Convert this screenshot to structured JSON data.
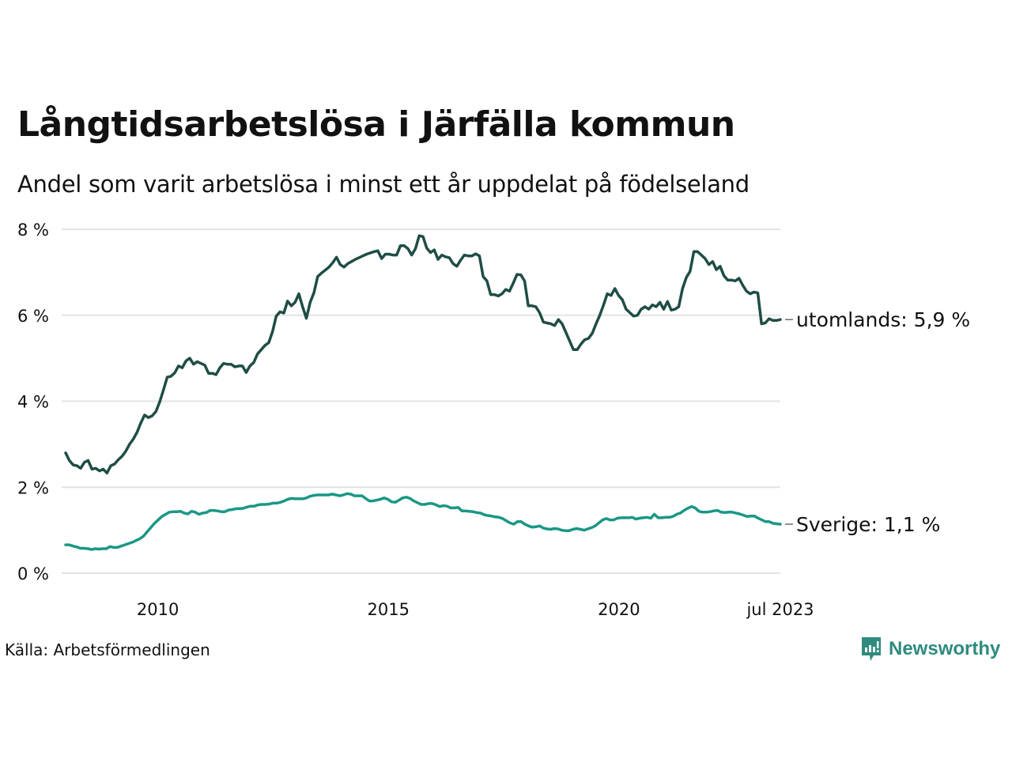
{
  "header": {
    "title": "Långtidsarbetslösa i Järfälla kommun",
    "subtitle": "Andel som varit arbetslösa i minst ett år uppdelat på födelseland"
  },
  "footer": {
    "source": "Källa: Arbetsförmedlingen",
    "logo_text": "Newsworthy",
    "logo_icon": "chart-speech-bubble-icon"
  },
  "colors": {
    "utomlands": "#1f4d45",
    "sverige": "#1a9785",
    "grid": "#e3e3e8",
    "logo": "#2e8b7e"
  },
  "chart_data": {
    "type": "line",
    "title": "Långtidsarbetslösa i Järfälla kommun",
    "subtitle": "Andel som varit arbetslösa i minst ett år uppdelat på födelseland",
    "xlabel": "",
    "ylabel": "",
    "x_start": "2008-01",
    "x_end": "2023-07",
    "x_frequency": "monthly",
    "xticks": [
      {
        "label": "2010",
        "at": 2010.0
      },
      {
        "label": "2015",
        "at": 2015.0
      },
      {
        "label": "2020",
        "at": 2020.0
      },
      {
        "label": "jul 2023",
        "at": 2023.5
      }
    ],
    "yticks": [
      {
        "label": "0 %",
        "value": 0
      },
      {
        "label": "2 %",
        "value": 2
      },
      {
        "label": "4 %",
        "value": 4
      },
      {
        "label": "6 %",
        "value": 6
      },
      {
        "label": "8 %",
        "value": 8
      }
    ],
    "ylim": [
      0,
      8
    ],
    "grid": "horizontal",
    "legend": "direct-labels-right",
    "series": [
      {
        "name": "utomlands",
        "end_label": "utomlands: 5,9 %",
        "values": [
          2.8,
          2.62,
          2.52,
          2.5,
          2.44,
          2.58,
          2.62,
          2.42,
          2.44,
          2.38,
          2.42,
          2.33,
          2.5,
          2.54,
          2.64,
          2.72,
          2.84,
          3.0,
          3.12,
          3.28,
          3.5,
          3.68,
          3.62,
          3.66,
          3.76,
          3.98,
          4.26,
          4.56,
          4.58,
          4.66,
          4.82,
          4.78,
          4.94,
          5.0,
          4.86,
          4.92,
          4.88,
          4.84,
          4.65,
          4.65,
          4.62,
          4.78,
          4.88,
          4.86,
          4.86,
          4.8,
          4.82,
          4.82,
          4.67,
          4.82,
          4.9,
          5.1,
          5.2,
          5.3,
          5.36,
          5.62,
          5.98,
          6.08,
          6.05,
          6.33,
          6.22,
          6.3,
          6.5,
          6.2,
          5.93,
          6.3,
          6.52,
          6.9,
          6.98,
          7.05,
          7.12,
          7.22,
          7.35,
          7.18,
          7.12,
          7.2,
          7.25,
          7.3,
          7.34,
          7.38,
          7.42,
          7.45,
          7.48,
          7.5,
          7.32,
          7.42,
          7.42,
          7.4,
          7.4,
          7.62,
          7.62,
          7.55,
          7.4,
          7.55,
          7.85,
          7.83,
          7.56,
          7.46,
          7.52,
          7.3,
          7.4,
          7.36,
          7.34,
          7.2,
          7.14,
          7.28,
          7.4,
          7.38,
          7.38,
          7.43,
          7.38,
          6.9,
          6.8,
          6.48,
          6.48,
          6.45,
          6.5,
          6.6,
          6.56,
          6.75,
          6.95,
          6.94,
          6.8,
          6.22,
          6.22,
          6.2,
          6.06,
          5.84,
          5.82,
          5.8,
          5.76,
          5.9,
          5.8,
          5.6,
          5.4,
          5.2,
          5.2,
          5.33,
          5.43,
          5.46,
          5.58,
          5.8,
          6.0,
          6.24,
          6.5,
          6.46,
          6.62,
          6.46,
          6.36,
          6.14,
          6.06,
          5.98,
          6.0,
          6.14,
          6.2,
          6.14,
          6.24,
          6.2,
          6.3,
          6.14,
          6.32,
          6.12,
          6.14,
          6.2,
          6.62,
          6.88,
          7.02,
          7.48,
          7.48,
          7.4,
          7.32,
          7.18,
          7.25,
          7.06,
          7.14,
          6.92,
          6.82,
          6.82,
          6.8,
          6.86,
          6.7,
          6.56,
          6.5,
          6.54,
          6.52,
          5.8,
          5.82,
          5.92,
          5.88,
          5.88,
          5.9
        ]
      },
      {
        "name": "Sverige",
        "end_label": "Sverige: 1,1 %",
        "values": [
          0.66,
          0.66,
          0.63,
          0.61,
          0.58,
          0.58,
          0.57,
          0.55,
          0.57,
          0.56,
          0.57,
          0.57,
          0.62,
          0.6,
          0.6,
          0.63,
          0.66,
          0.69,
          0.72,
          0.76,
          0.8,
          0.86,
          0.96,
          1.06,
          1.16,
          1.24,
          1.32,
          1.37,
          1.42,
          1.43,
          1.43,
          1.44,
          1.4,
          1.38,
          1.44,
          1.42,
          1.37,
          1.4,
          1.41,
          1.46,
          1.46,
          1.45,
          1.43,
          1.43,
          1.47,
          1.48,
          1.5,
          1.5,
          1.51,
          1.54,
          1.56,
          1.56,
          1.59,
          1.6,
          1.6,
          1.61,
          1.63,
          1.63,
          1.65,
          1.68,
          1.72,
          1.74,
          1.73,
          1.73,
          1.73,
          1.75,
          1.79,
          1.81,
          1.82,
          1.82,
          1.82,
          1.82,
          1.84,
          1.82,
          1.8,
          1.82,
          1.85,
          1.84,
          1.8,
          1.8,
          1.8,
          1.74,
          1.68,
          1.68,
          1.7,
          1.72,
          1.75,
          1.72,
          1.66,
          1.65,
          1.7,
          1.75,
          1.77,
          1.74,
          1.68,
          1.64,
          1.6,
          1.6,
          1.62,
          1.62,
          1.59,
          1.55,
          1.57,
          1.56,
          1.52,
          1.52,
          1.53,
          1.45,
          1.45,
          1.44,
          1.43,
          1.41,
          1.4,
          1.36,
          1.34,
          1.33,
          1.31,
          1.3,
          1.27,
          1.22,
          1.17,
          1.14,
          1.2,
          1.2,
          1.14,
          1.1,
          1.07,
          1.08,
          1.1,
          1.05,
          1.03,
          1.02,
          1.04,
          1.03,
          1.0,
          0.99,
          0.99,
          1.02,
          1.04,
          1.02,
          1.0,
          1.03,
          1.06,
          1.1,
          1.17,
          1.24,
          1.27,
          1.24,
          1.24,
          1.28,
          1.29,
          1.29,
          1.29,
          1.3,
          1.26,
          1.28,
          1.29,
          1.3,
          1.28,
          1.37,
          1.29,
          1.29,
          1.3,
          1.3,
          1.32,
          1.37,
          1.4,
          1.46,
          1.51,
          1.55,
          1.52,
          1.44,
          1.42,
          1.42,
          1.43,
          1.45,
          1.46,
          1.42,
          1.41,
          1.42,
          1.42,
          1.4,
          1.38,
          1.35,
          1.32,
          1.33,
          1.33,
          1.28,
          1.24,
          1.2,
          1.2,
          1.16,
          1.15,
          1.14
        ]
      }
    ]
  }
}
